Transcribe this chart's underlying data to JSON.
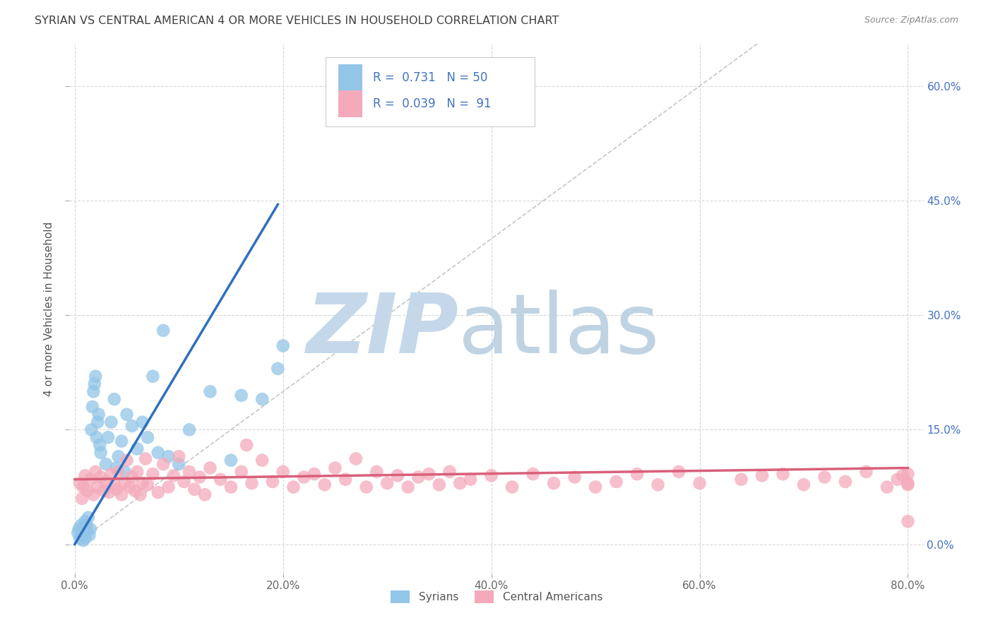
{
  "title": "SYRIAN VS CENTRAL AMERICAN 4 OR MORE VEHICLES IN HOUSEHOLD CORRELATION CHART",
  "source": "Source: ZipAtlas.com",
  "xlabel_ticks": [
    "0.0%",
    "20.0%",
    "40.0%",
    "60.0%",
    "80.0%"
  ],
  "xlabel_tick_vals": [
    0.0,
    0.2,
    0.4,
    0.6,
    0.8
  ],
  "ylabel_ticks": [
    "0.0%",
    "15.0%",
    "30.0%",
    "45.0%",
    "60.0%"
  ],
  "ylabel_tick_vals": [
    0.0,
    0.15,
    0.3,
    0.45,
    0.6
  ],
  "ylabel": "4 or more Vehicles in Household",
  "xmin": -0.005,
  "xmax": 0.815,
  "ymin": -0.038,
  "ymax": 0.655,
  "syrian_R": 0.731,
  "syrian_N": 50,
  "central_R": 0.039,
  "central_N": 91,
  "syrian_color": "#92c5e8",
  "central_color": "#f4aaba",
  "syrian_line_color": "#2f6fbf",
  "central_line_color": "#d9607a",
  "diagonal_color": "#c0c0c0",
  "legend_label_color": "#4472c4",
  "background_color": "#ffffff",
  "grid_color": "#d8d8d8",
  "title_color": "#404040",
  "watermark_zip_color": "#c5d8ea",
  "watermark_atlas_color": "#b8cfe0",
  "syrian_scatter_x": [
    0.003,
    0.004,
    0.005,
    0.006,
    0.007,
    0.008,
    0.008,
    0.009,
    0.01,
    0.01,
    0.011,
    0.012,
    0.013,
    0.014,
    0.015,
    0.016,
    0.017,
    0.018,
    0.019,
    0.02,
    0.021,
    0.022,
    0.023,
    0.024,
    0.025,
    0.03,
    0.032,
    0.035,
    0.038,
    0.04,
    0.042,
    0.045,
    0.048,
    0.05,
    0.055,
    0.06,
    0.065,
    0.07,
    0.075,
    0.08,
    0.085,
    0.09,
    0.1,
    0.11,
    0.13,
    0.15,
    0.16,
    0.18,
    0.195,
    0.2
  ],
  "syrian_scatter_y": [
    0.015,
    0.02,
    0.008,
    0.025,
    0.01,
    0.018,
    0.005,
    0.022,
    0.03,
    0.008,
    0.025,
    0.018,
    0.035,
    0.012,
    0.02,
    0.15,
    0.18,
    0.2,
    0.21,
    0.22,
    0.14,
    0.16,
    0.17,
    0.13,
    0.12,
    0.105,
    0.14,
    0.16,
    0.19,
    0.1,
    0.115,
    0.135,
    0.095,
    0.17,
    0.155,
    0.125,
    0.16,
    0.14,
    0.22,
    0.12,
    0.28,
    0.115,
    0.105,
    0.15,
    0.2,
    0.11,
    0.195,
    0.19,
    0.23,
    0.26
  ],
  "central_scatter_x": [
    0.005,
    0.007,
    0.008,
    0.01,
    0.012,
    0.015,
    0.018,
    0.02,
    0.022,
    0.025,
    0.028,
    0.03,
    0.033,
    0.035,
    0.038,
    0.04,
    0.042,
    0.045,
    0.048,
    0.05,
    0.053,
    0.055,
    0.058,
    0.06,
    0.063,
    0.065,
    0.068,
    0.07,
    0.075,
    0.08,
    0.085,
    0.09,
    0.095,
    0.1,
    0.105,
    0.11,
    0.115,
    0.12,
    0.125,
    0.13,
    0.14,
    0.15,
    0.16,
    0.165,
    0.17,
    0.18,
    0.19,
    0.2,
    0.21,
    0.22,
    0.23,
    0.24,
    0.25,
    0.26,
    0.27,
    0.28,
    0.29,
    0.3,
    0.31,
    0.32,
    0.33,
    0.34,
    0.35,
    0.36,
    0.37,
    0.38,
    0.4,
    0.42,
    0.44,
    0.46,
    0.48,
    0.5,
    0.52,
    0.54,
    0.56,
    0.58,
    0.6,
    0.64,
    0.66,
    0.68,
    0.7,
    0.72,
    0.74,
    0.76,
    0.78,
    0.79,
    0.795,
    0.8,
    0.8,
    0.8,
    0.8
  ],
  "central_scatter_y": [
    0.08,
    0.06,
    0.075,
    0.09,
    0.07,
    0.085,
    0.065,
    0.095,
    0.075,
    0.088,
    0.07,
    0.082,
    0.068,
    0.092,
    0.078,
    0.072,
    0.095,
    0.065,
    0.08,
    0.11,
    0.075,
    0.088,
    0.07,
    0.095,
    0.065,
    0.08,
    0.112,
    0.078,
    0.092,
    0.068,
    0.105,
    0.075,
    0.09,
    0.115,
    0.082,
    0.095,
    0.072,
    0.088,
    0.065,
    0.1,
    0.085,
    0.075,
    0.095,
    0.13,
    0.08,
    0.11,
    0.082,
    0.095,
    0.075,
    0.088,
    0.092,
    0.078,
    0.1,
    0.085,
    0.112,
    0.075,
    0.095,
    0.08,
    0.09,
    0.075,
    0.088,
    0.092,
    0.078,
    0.095,
    0.08,
    0.085,
    0.09,
    0.075,
    0.092,
    0.08,
    0.088,
    0.075,
    0.082,
    0.092,
    0.078,
    0.095,
    0.08,
    0.085,
    0.09,
    0.092,
    0.078,
    0.088,
    0.082,
    0.095,
    0.075,
    0.085,
    0.09,
    0.08,
    0.092,
    0.03,
    0.078
  ],
  "syrian_line_x0": 0.0,
  "syrian_line_y0": 0.0,
  "syrian_line_x1": 0.195,
  "syrian_line_y1": 0.445,
  "central_line_x0": 0.0,
  "central_line_y0": 0.085,
  "central_line_x1": 0.8,
  "central_line_y1": 0.1
}
